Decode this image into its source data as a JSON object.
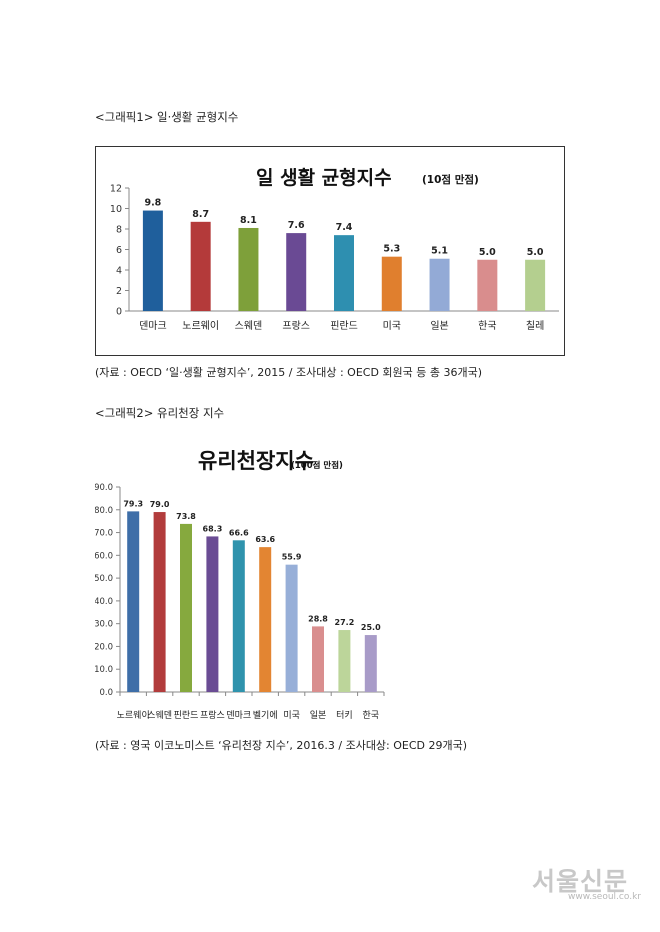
{
  "graphic1": {
    "caption": "<그래픽1> 일·생활 균형지수",
    "source": "(자료 : OECD ‘일·생활 균형지수’, 2015 / 조사대상 : OECD 회원국 등 총 36개국)"
  },
  "graphic2": {
    "caption": "<그래픽2> 유리천장 지수",
    "source": "(자료 : 영국 이코노미스트 ‘유리천장 지수’, 2016.3 / 조사대상: OECD 29개국)"
  },
  "watermark": {
    "name": "서울신문",
    "url": "www.seoul.co.kr"
  },
  "chart_data": [
    {
      "type": "bar",
      "title": "일 생활 균형지수",
      "subtitle": "(10점 만점)",
      "categories": [
        "덴마크",
        "노르웨이",
        "스웨덴",
        "프랑스",
        "핀란드",
        "미국",
        "일본",
        "한국",
        "칠레"
      ],
      "values": [
        9.8,
        8.7,
        8.1,
        7.6,
        7.4,
        5.3,
        5.1,
        5.0,
        5.0
      ],
      "value_labels": [
        "9.8",
        "8.7",
        "8.1",
        "7.6",
        "7.4",
        "5.3",
        "5.1",
        "5.0",
        "5.0"
      ],
      "colors": [
        "#1f5f9c",
        "#b43a3a",
        "#7ea03a",
        "#6a4a94",
        "#2e8fb0",
        "#e07f2e",
        "#93aad6",
        "#d98d8d",
        "#b4cf8f"
      ],
      "ylim": [
        0,
        12
      ],
      "yticks": [
        "0",
        "2",
        "4",
        "6",
        "8",
        "10",
        "12"
      ],
      "grid": false,
      "legend": "none"
    },
    {
      "type": "bar",
      "title": "유리천장지수",
      "subtitle": "(100점 만점)",
      "categories": [
        "노르웨이",
        "스웨덴",
        "핀란드",
        "프랑스",
        "덴마크",
        "벨기에",
        "미국",
        "일본",
        "터키",
        "한국"
      ],
      "values": [
        79.3,
        79.0,
        73.8,
        68.3,
        66.6,
        63.6,
        55.9,
        28.8,
        27.2,
        25.0
      ],
      "value_labels": [
        "79.3",
        "79.0",
        "73.8",
        "68.3",
        "66.6",
        "63.6",
        "55.9",
        "28.8",
        "27.2",
        "25.0"
      ],
      "colors": [
        "#3e6ea8",
        "#b23c3c",
        "#86a93e",
        "#6a4c94",
        "#2f93ad",
        "#e38532",
        "#97afd8",
        "#d98e8e",
        "#bcd59a",
        "#a89bc8"
      ],
      "ylim": [
        0,
        90
      ],
      "yticks": [
        "0.0",
        "10.0",
        "20.0",
        "30.0",
        "40.0",
        "50.0",
        "60.0",
        "70.0",
        "80.0",
        "90.0"
      ],
      "grid": false,
      "legend": "none"
    }
  ]
}
